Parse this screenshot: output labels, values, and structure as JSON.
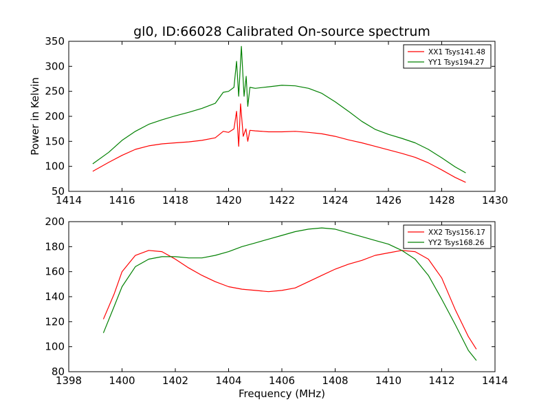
{
  "figure_title": "gl0, ID:66028 Calibrated On-source spectrum",
  "chart_data": [
    {
      "type": "line",
      "title": "gl0, ID:66028 Calibrated On-source spectrum",
      "xlabel": "",
      "ylabel": "Power in Kelvin",
      "xlim": [
        1414,
        1430
      ],
      "ylim": [
        50,
        350
      ],
      "xticks": [
        1414,
        1416,
        1418,
        1420,
        1422,
        1424,
        1426,
        1428,
        1430
      ],
      "yticks": [
        50,
        100,
        150,
        200,
        250,
        300,
        350
      ],
      "grid": false,
      "legend_position": "top-right",
      "series": [
        {
          "name": "XX1 Tsys141.48",
          "color": "#ff0000",
          "points": [
            [
              1414.9,
              90
            ],
            [
              1415.5,
              108
            ],
            [
              1416.0,
              122
            ],
            [
              1416.5,
              134
            ],
            [
              1417.0,
              141
            ],
            [
              1417.5,
              145
            ],
            [
              1418.0,
              147
            ],
            [
              1418.5,
              149
            ],
            [
              1419.0,
              152
            ],
            [
              1419.5,
              157
            ],
            [
              1419.8,
              170
            ],
            [
              1420.0,
              168
            ],
            [
              1420.2,
              175
            ],
            [
              1420.3,
              210
            ],
            [
              1420.38,
              140
            ],
            [
              1420.45,
              225
            ],
            [
              1420.55,
              160
            ],
            [
              1420.65,
              175
            ],
            [
              1420.72,
              150
            ],
            [
              1420.8,
              172
            ],
            [
              1421.0,
              171
            ],
            [
              1421.5,
              169
            ],
            [
              1422.0,
              169
            ],
            [
              1422.5,
              170
            ],
            [
              1423.0,
              168
            ],
            [
              1423.5,
              165
            ],
            [
              1424.0,
              160
            ],
            [
              1424.5,
              153
            ],
            [
              1425.0,
              147
            ],
            [
              1425.5,
              140
            ],
            [
              1426.0,
              133
            ],
            [
              1426.5,
              126
            ],
            [
              1427.0,
              118
            ],
            [
              1427.5,
              107
            ],
            [
              1428.0,
              93
            ],
            [
              1428.5,
              78
            ],
            [
              1428.9,
              68
            ]
          ]
        },
        {
          "name": "YY1 Tsys194.27",
          "color": "#008000",
          "points": [
            [
              1414.9,
              105
            ],
            [
              1415.5,
              128
            ],
            [
              1416.0,
              152
            ],
            [
              1416.5,
              170
            ],
            [
              1417.0,
              184
            ],
            [
              1417.5,
              193
            ],
            [
              1418.0,
              201
            ],
            [
              1418.5,
              208
            ],
            [
              1419.0,
              216
            ],
            [
              1419.5,
              226
            ],
            [
              1419.8,
              248
            ],
            [
              1420.0,
              250
            ],
            [
              1420.2,
              258
            ],
            [
              1420.3,
              310
            ],
            [
              1420.38,
              240
            ],
            [
              1420.48,
              340
            ],
            [
              1420.58,
              240
            ],
            [
              1420.66,
              280
            ],
            [
              1420.72,
              220
            ],
            [
              1420.8,
              258
            ],
            [
              1421.0,
              256
            ],
            [
              1421.5,
              259
            ],
            [
              1422.0,
              262
            ],
            [
              1422.5,
              261
            ],
            [
              1423.0,
              256
            ],
            [
              1423.5,
              246
            ],
            [
              1424.0,
              229
            ],
            [
              1424.5,
              210
            ],
            [
              1425.0,
              190
            ],
            [
              1425.5,
              174
            ],
            [
              1426.0,
              164
            ],
            [
              1426.5,
              156
            ],
            [
              1427.0,
              147
            ],
            [
              1427.5,
              134
            ],
            [
              1428.0,
              117
            ],
            [
              1428.5,
              99
            ],
            [
              1428.9,
              87
            ]
          ]
        }
      ]
    },
    {
      "type": "line",
      "title": "",
      "xlabel": "Frequency (MHz)",
      "ylabel": "",
      "xlim": [
        1398,
        1414
      ],
      "ylim": [
        80,
        200
      ],
      "xticks": [
        1398,
        1400,
        1402,
        1404,
        1406,
        1408,
        1410,
        1412,
        1414
      ],
      "yticks": [
        80,
        100,
        120,
        140,
        160,
        180,
        200
      ],
      "grid": false,
      "legend_position": "top-right",
      "series": [
        {
          "name": "XX2 Tsys156.17",
          "color": "#ff0000",
          "points": [
            [
              1399.3,
              122
            ],
            [
              1399.7,
              142
            ],
            [
              1400.0,
              160
            ],
            [
              1400.5,
              173
            ],
            [
              1401.0,
              177
            ],
            [
              1401.5,
              176
            ],
            [
              1402.0,
              170
            ],
            [
              1402.5,
              163
            ],
            [
              1403.0,
              157
            ],
            [
              1403.5,
              152
            ],
            [
              1404.0,
              148
            ],
            [
              1404.5,
              146
            ],
            [
              1405.0,
              145
            ],
            [
              1405.5,
              144
            ],
            [
              1406.0,
              145
            ],
            [
              1406.5,
              147
            ],
            [
              1407.0,
              152
            ],
            [
              1407.5,
              157
            ],
            [
              1408.0,
              162
            ],
            [
              1408.5,
              166
            ],
            [
              1409.0,
              169
            ],
            [
              1409.5,
              173
            ],
            [
              1410.0,
              175
            ],
            [
              1410.5,
              177
            ],
            [
              1411.0,
              176
            ],
            [
              1411.5,
              170
            ],
            [
              1412.0,
              155
            ],
            [
              1412.5,
              130
            ],
            [
              1413.0,
              108
            ],
            [
              1413.3,
              98
            ]
          ]
        },
        {
          "name": "YY2 Tsys168.26",
          "color": "#008000",
          "points": [
            [
              1399.3,
              111
            ],
            [
              1399.7,
              132
            ],
            [
              1400.0,
              148
            ],
            [
              1400.5,
              164
            ],
            [
              1401.0,
              170
            ],
            [
              1401.5,
              172
            ],
            [
              1402.0,
              172
            ],
            [
              1402.5,
              171
            ],
            [
              1403.0,
              171
            ],
            [
              1403.5,
              173
            ],
            [
              1404.0,
              176
            ],
            [
              1404.5,
              180
            ],
            [
              1405.0,
              183
            ],
            [
              1405.5,
              186
            ],
            [
              1406.0,
              189
            ],
            [
              1406.5,
              192
            ],
            [
              1407.0,
              194
            ],
            [
              1407.5,
              195
            ],
            [
              1408.0,
              194
            ],
            [
              1408.5,
              191
            ],
            [
              1409.0,
              188
            ],
            [
              1409.5,
              185
            ],
            [
              1410.0,
              182
            ],
            [
              1410.5,
              177
            ],
            [
              1411.0,
              170
            ],
            [
              1411.5,
              157
            ],
            [
              1412.0,
              138
            ],
            [
              1412.5,
              118
            ],
            [
              1413.0,
              97
            ],
            [
              1413.3,
              89
            ]
          ]
        }
      ]
    }
  ]
}
